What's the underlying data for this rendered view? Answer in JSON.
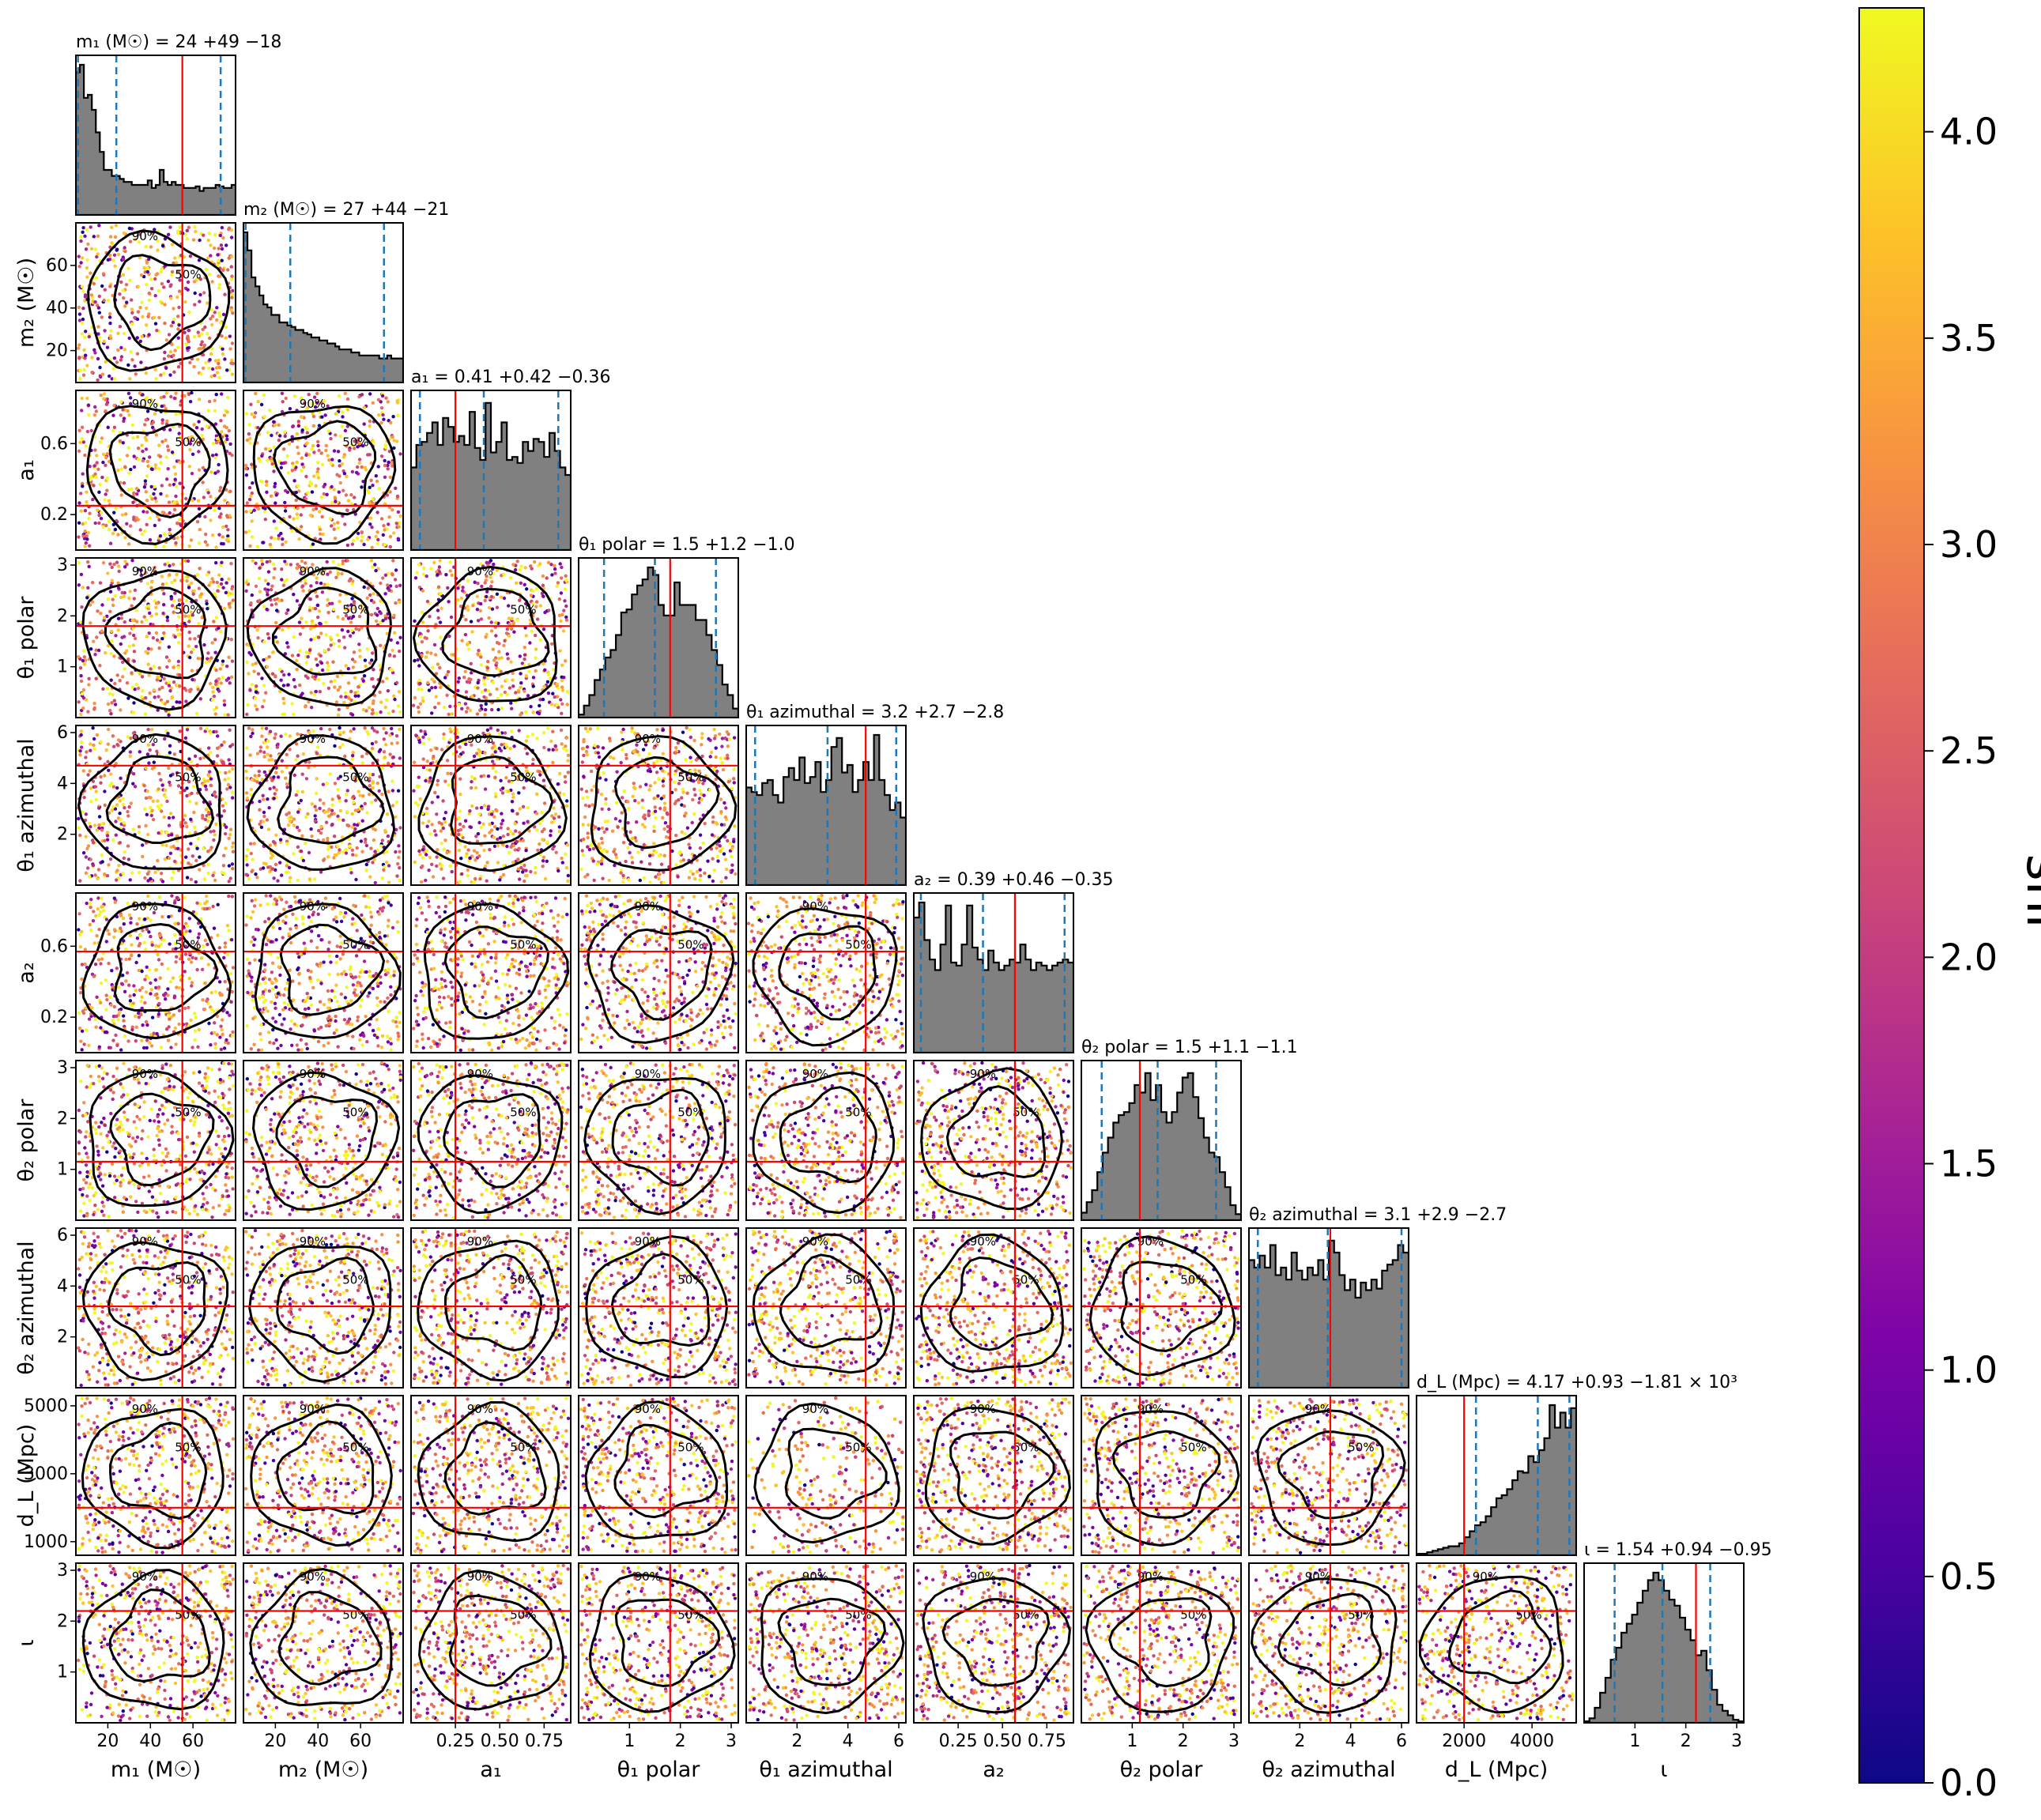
{
  "chart_data": {
    "type": "corner",
    "description_note": "Corner plot of posterior samples coloured by snr; diagonal histograms with 5/50/95% quantile dashed lines and a red injection line.",
    "parameters": [
      {
        "label": "m₁ (M☉)",
        "title": "m₁ (M☉) = 24 +49 −18",
        "range": [
          5,
          80
        ],
        "ticks": [
          20,
          40,
          60
        ],
        "tick_labels": [
          "20",
          "40",
          "60"
        ],
        "injection": 55,
        "quantiles": [
          6,
          24,
          73
        ],
        "hist": [
          0.95,
          1,
          0.78,
          0.8,
          0.7,
          0.55,
          0.42,
          0.3,
          0.3,
          0.26,
          0.26,
          0.24,
          0.22,
          0.22,
          0.2,
          0.2,
          0.2,
          0.2,
          0.23,
          0.18,
          0.2,
          0.3,
          0.22,
          0.2,
          0.22,
          0.2,
          0.2,
          0.18,
          0.18,
          0.18,
          0.19,
          0.16,
          0.18,
          0.18,
          0.18,
          0.2,
          0.19,
          0.18,
          0.18,
          0.2
        ]
      },
      {
        "label": "m₂ (M☉)",
        "title": "m₂ (M☉) = 27 +44 −21",
        "range": [
          5,
          80
        ],
        "ticks": [
          20,
          40,
          60
        ],
        "tick_labels": [
          "20",
          "40",
          "60"
        ],
        "injection": null,
        "quantiles": [
          6,
          27,
          71
        ],
        "hist": [
          1,
          0.88,
          0.7,
          0.64,
          0.58,
          0.52,
          0.5,
          0.45,
          0.45,
          0.4,
          0.4,
          0.38,
          0.37,
          0.35,
          0.35,
          0.33,
          0.32,
          0.3,
          0.3,
          0.28,
          0.28,
          0.26,
          0.26,
          0.24,
          0.22,
          0.22,
          0.22,
          0.2,
          0.2,
          0.18,
          0.18,
          0.18,
          0.18,
          0.18,
          0.16,
          0.16,
          0.18,
          0.16,
          0.16,
          0.16
        ]
      },
      {
        "label": "a₁",
        "title": "a₁ = 0.41 +0.42 −0.36",
        "range": [
          0,
          0.9
        ],
        "ticks": [
          0.2,
          0.6
        ],
        "tick_labels": [
          "0.2",
          "0.6"
        ],
        "xticks": [
          0.25,
          0.5,
          0.75
        ],
        "xtick_labels": [
          "0.25",
          "0.50",
          "0.75"
        ],
        "injection": 0.25,
        "quantiles": [
          0.05,
          0.41,
          0.83
        ],
        "hist": [
          0.55,
          0.7,
          0.72,
          0.78,
          0.85,
          0.7,
          0.88,
          0.82,
          0.72,
          0.76,
          0.7,
          0.92,
          0.68,
          0.6,
          0.98,
          0.65,
          0.72,
          0.85,
          0.6,
          0.62,
          0.58,
          0.72,
          0.66,
          0.74,
          0.72,
          0.62,
          0.78,
          0.66,
          0.55,
          0.5
        ]
      },
      {
        "label": "θ₁ polar",
        "title": "θ₁ polar = 1.5 +1.2 −1.0",
        "range": [
          0,
          3.14
        ],
        "ticks": [
          1,
          2,
          3
        ],
        "tick_labels": [
          "1",
          "2",
          "3"
        ],
        "injection": 1.8,
        "quantiles": [
          0.5,
          1.5,
          2.7
        ],
        "hist": [
          0.02,
          0.08,
          0.15,
          0.25,
          0.32,
          0.4,
          0.45,
          0.55,
          0.7,
          0.72,
          0.82,
          0.88,
          0.92,
          1,
          0.95,
          0.75,
          0.68,
          0.68,
          0.9,
          0.75,
          0.75,
          0.75,
          0.65,
          0.65,
          0.55,
          0.45,
          0.35,
          0.22,
          0.15,
          0.06
        ]
      },
      {
        "label": "θ₁ azimuthal",
        "title": "θ₁ azimuthal = 3.2 +2.7 −2.8",
        "range": [
          0,
          6.28
        ],
        "ticks": [
          2,
          4,
          6
        ],
        "tick_labels": [
          "2",
          "4",
          "6"
        ],
        "injection": 4.7,
        "quantiles": [
          0.35,
          3.2,
          5.9
        ],
        "hist": [
          0.65,
          0.62,
          0.6,
          0.68,
          0.7,
          0.6,
          0.55,
          0.72,
          0.78,
          0.7,
          0.85,
          0.68,
          0.72,
          0.82,
          0.62,
          0.7,
          0.92,
          0.98,
          0.75,
          0.8,
          0.62,
          0.7,
          0.82,
          0.7,
          1,
          0.7,
          0.6,
          0.5,
          0.55,
          0.45
        ]
      },
      {
        "label": "a₂",
        "title": "a₂ = 0.39 +0.46 −0.35",
        "range": [
          0,
          0.9
        ],
        "ticks": [
          0.2,
          0.6
        ],
        "tick_labels": [
          "0.2",
          "0.6"
        ],
        "xticks": [
          0.25,
          0.5,
          0.75
        ],
        "xtick_labels": [
          "0.25",
          "0.50",
          "0.75"
        ],
        "injection": 0.57,
        "quantiles": [
          0.04,
          0.39,
          0.85
        ],
        "hist": [
          0.9,
          1,
          0.75,
          0.62,
          0.55,
          0.72,
          0.98,
          0.6,
          0.58,
          0.72,
          0.98,
          0.7,
          0.62,
          0.55,
          0.68,
          0.6,
          0.55,
          0.58,
          0.62,
          0.6,
          0.72,
          0.62,
          0.55,
          0.6,
          0.58,
          0.55,
          0.58,
          0.6,
          0.62,
          0.6
        ]
      },
      {
        "label": "θ₂ polar",
        "title": "θ₂ polar = 1.5 +1.1 −1.1",
        "range": [
          0,
          3.14
        ],
        "ticks": [
          1,
          2,
          3
        ],
        "tick_labels": [
          "1",
          "2",
          "3"
        ],
        "injection": 1.15,
        "quantiles": [
          0.4,
          1.5,
          2.65
        ],
        "hist": [
          0.05,
          0.12,
          0.2,
          0.32,
          0.45,
          0.55,
          0.65,
          0.7,
          0.72,
          0.78,
          0.9,
          0.85,
          0.98,
          0.8,
          0.9,
          0.72,
          0.65,
          0.72,
          0.85,
          0.95,
          0.98,
          0.82,
          0.68,
          0.55,
          0.45,
          0.42,
          0.32,
          0.22,
          0.1,
          0.04
        ]
      },
      {
        "label": "θ₂ azimuthal",
        "title": "θ₂ azimuthal = 3.1 +2.9 −2.7",
        "range": [
          0,
          6.28
        ],
        "ticks": [
          2,
          4,
          6
        ],
        "tick_labels": [
          "2",
          "4",
          "6"
        ],
        "injection": 3.2,
        "quantiles": [
          0.35,
          3.1,
          6.0
        ],
        "hist": [
          0.85,
          0.8,
          0.88,
          0.8,
          0.95,
          0.75,
          0.8,
          0.72,
          0.9,
          0.78,
          0.72,
          0.8,
          0.75,
          0.85,
          0.72,
          0.98,
          0.9,
          0.75,
          0.65,
          0.72,
          0.6,
          0.7,
          0.65,
          0.72,
          0.66,
          0.78,
          0.82,
          0.85,
          0.95,
          0.9
        ]
      },
      {
        "label": "d_L (Mpc)",
        "title": "d_L (Mpc) = 4.17 +0.93 −1.81 × 10³",
        "range": [
          600,
          5300
        ],
        "ticks": [
          1000,
          3000,
          5000
        ],
        "tick_labels": [
          "1000",
          "3000",
          "5000"
        ],
        "xticks": [
          2000,
          4000
        ],
        "xtick_labels": [
          "2000",
          "4000"
        ],
        "injection": 2000,
        "quantiles": [
          2350,
          4170,
          5100
        ],
        "hist": [
          0.01,
          0.01,
          0.02,
          0.03,
          0.04,
          0.05,
          0.06,
          0.06,
          0.08,
          0.12,
          0.16,
          0.2,
          0.22,
          0.26,
          0.32,
          0.38,
          0.4,
          0.44,
          0.5,
          0.56,
          0.55,
          0.66,
          0.62,
          0.7,
          0.78,
          1,
          0.85,
          0.95,
          0.85,
          0.98
        ]
      },
      {
        "label": "ι",
        "title": "ι = 1.54 +0.94 −0.95",
        "range": [
          0,
          3.14
        ],
        "ticks": [
          1,
          2,
          3
        ],
        "tick_labels": [
          "1",
          "2",
          "3"
        ],
        "injection": 2.2,
        "quantiles": [
          0.6,
          1.54,
          2.48
        ],
        "hist": [
          0.01,
          0.03,
          0.1,
          0.2,
          0.3,
          0.42,
          0.5,
          0.6,
          0.66,
          0.72,
          0.8,
          0.88,
          0.95,
          1,
          0.95,
          0.88,
          0.82,
          0.78,
          0.7,
          0.62,
          0.55,
          0.45,
          0.48,
          0.35,
          0.22,
          0.12,
          0.08,
          0.05,
          0.02,
          0.01
        ]
      }
    ],
    "colorbar": {
      "label": "snr",
      "range": [
        0,
        4.3
      ],
      "ticks": [
        0.0,
        0.5,
        1.0,
        1.5,
        2.0,
        2.5,
        3.0,
        3.5,
        4.0
      ],
      "tick_labels": [
        "0.0",
        "0.5",
        "1.0",
        "1.5",
        "2.0",
        "2.5",
        "3.0",
        "3.5",
        "4.0"
      ],
      "colormap": "plasma"
    },
    "contour_labels": [
      "50%",
      "90%"
    ],
    "colors": {
      "histogram_fill": "#808080",
      "injection": "#ff0000",
      "quantile": "#1f77b4",
      "contour": "#000000"
    }
  }
}
